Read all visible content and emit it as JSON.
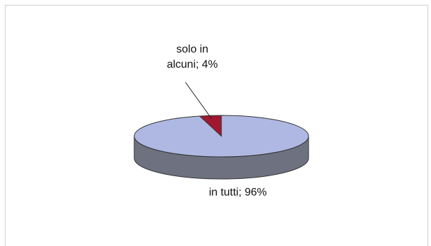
{
  "chart_data": {
    "type": "pie",
    "title": "",
    "slices": [
      {
        "label": "solo in alcuni",
        "value": 4,
        "display": "solo in alcuni; 4%",
        "color": "#A01830"
      },
      {
        "label": "in tutti",
        "value": 96,
        "display": "in tutti; 96%",
        "color": "#AEB8E2"
      }
    ],
    "labels": {
      "small_line1": "solo in",
      "small_line2": "alcuni; 4%",
      "large": "in tutti; 96%"
    },
    "side_color": "#6E7180"
  }
}
